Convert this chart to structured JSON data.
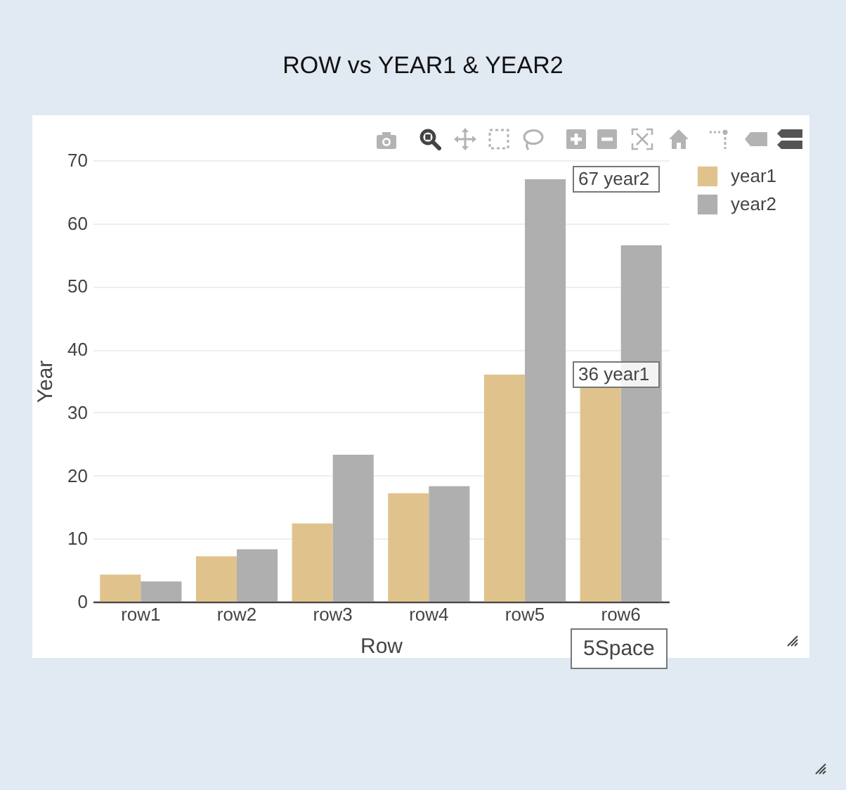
{
  "chart_data": {
    "type": "bar",
    "title": "ROW vs YEAR1 & YEAR2",
    "xlabel": "Row",
    "ylabel": "Year",
    "categories": [
      "row1",
      "row2",
      "row3",
      "row4",
      "row5",
      "row6"
    ],
    "series": [
      {
        "name": "year1",
        "color": "#e0c38c",
        "values": [
          4.3,
          7.2,
          12.4,
          17.2,
          36,
          34
        ]
      },
      {
        "name": "year2",
        "color": "#afafaf",
        "values": [
          3.2,
          8.3,
          23.3,
          18.3,
          67,
          56.5
        ]
      }
    ],
    "ylim": [
      0,
      70
    ],
    "yticks": [
      0,
      10,
      20,
      30,
      40,
      50,
      60,
      70
    ],
    "grid": "y",
    "legend": "top right",
    "annotations": [
      {
        "text": "67 year2",
        "x": "row5",
        "y": 67
      },
      {
        "text": "36 year1",
        "x": "row5",
        "y": 36
      },
      "5Space"
    ]
  }
}
